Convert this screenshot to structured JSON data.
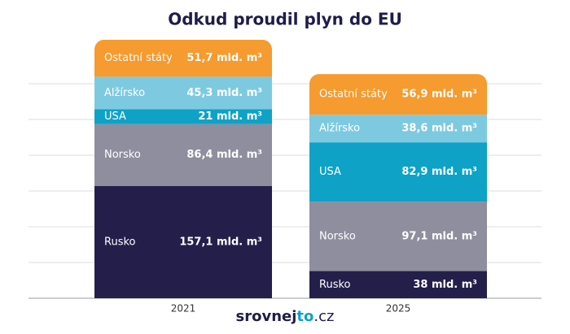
{
  "chart_data": {
    "type": "bar",
    "stacked": true,
    "title": "Odkud proudil plyn do EU",
    "categories": [
      "2021",
      "2025"
    ],
    "series": [
      {
        "name": "Rusko",
        "color": "#231f4a",
        "values": [
          157.1,
          38
        ],
        "value_labels": [
          "157,1 mld. m³",
          "38 mld. m³"
        ]
      },
      {
        "name": "Norsko",
        "color": "#8f8e9f",
        "values": [
          86.4,
          97.1
        ],
        "value_labels": [
          "86,4 mld. m³",
          "97,1 mld. m³"
        ]
      },
      {
        "name": "USA",
        "color": "#0ea2c7",
        "values": [
          21,
          82.9
        ],
        "value_labels": [
          "21 mld. m³",
          "82,9 mld. m³"
        ]
      },
      {
        "name": "Alžírsko",
        "color": "#7dcae0",
        "values": [
          45.3,
          38.6
        ],
        "value_labels": [
          "45,3 mld. m³",
          "38,6 mld. m³"
        ]
      },
      {
        "name": "Ostatní státy",
        "color": "#f59b2f",
        "values": [
          51.7,
          56.9
        ],
        "value_labels": [
          "51,7 mld. m³",
          "56,9 mld. m³"
        ]
      }
    ],
    "ylim": [
      0,
      400
    ],
    "yticks": [
      0,
      50,
      100,
      150,
      200,
      250,
      300
    ],
    "grid": true
  },
  "brand": [
    "srovnej",
    "to",
    ".cz"
  ]
}
